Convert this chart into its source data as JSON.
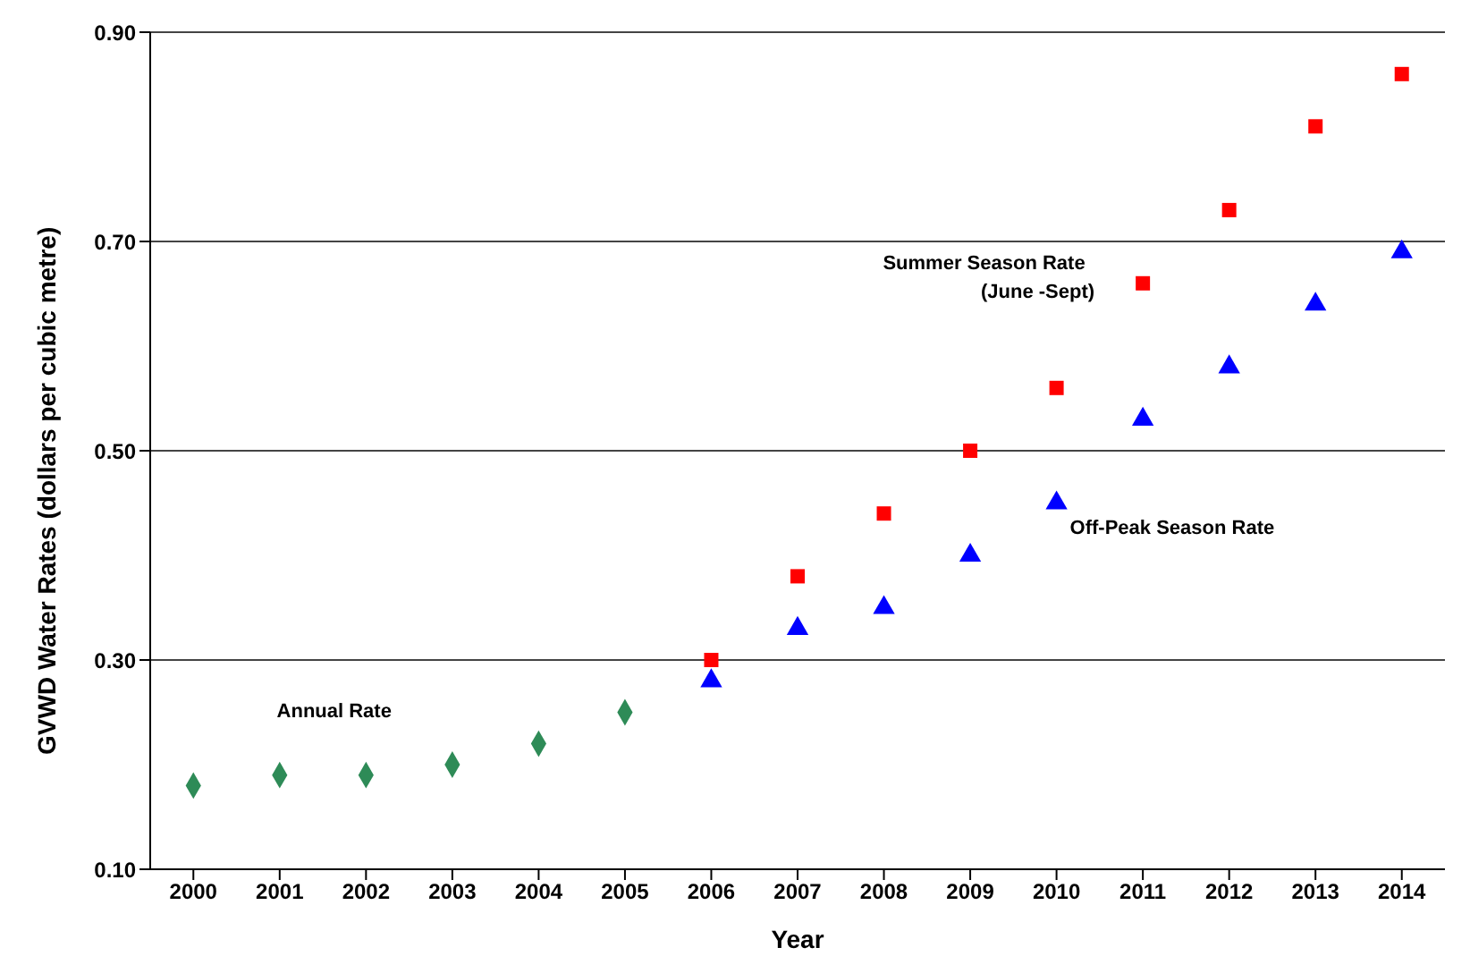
{
  "chart_data": {
    "type": "scatter",
    "xlabel": "Year",
    "ylabel": "GVWD Water Rates (dollars per cubic metre)",
    "categories": [
      "2000",
      "2001",
      "2002",
      "2003",
      "2004",
      "2005",
      "2006",
      "2007",
      "2008",
      "2009",
      "2010",
      "2011",
      "2012",
      "2013",
      "2014"
    ],
    "series": [
      {
        "name": "Annual Rate",
        "color": "#2e8b57",
        "marker": "diamond",
        "values": [
          0.18,
          0.19,
          0.19,
          0.2,
          0.22,
          0.25,
          null,
          null,
          null,
          null,
          null,
          null,
          null,
          null,
          null
        ]
      },
      {
        "name": "Summer Season Rate (June -Sept)",
        "color": "#ff0000",
        "marker": "square",
        "values": [
          null,
          null,
          null,
          null,
          null,
          null,
          0.3,
          0.38,
          0.44,
          0.5,
          0.56,
          0.66,
          0.73,
          0.81,
          0.86
        ]
      },
      {
        "name": "Off-Peak Season Rate",
        "color": "#0000ff",
        "marker": "triangle",
        "values": [
          null,
          null,
          null,
          null,
          null,
          null,
          0.28,
          0.33,
          0.35,
          0.4,
          0.45,
          0.53,
          0.58,
          0.64,
          0.69
        ]
      }
    ],
    "ylim": [
      0.1,
      0.9
    ],
    "yticks": [
      {
        "value": 0.1,
        "label": "0.10"
      },
      {
        "value": 0.3,
        "label": "0.30"
      },
      {
        "value": 0.5,
        "label": "0.50"
      },
      {
        "value": 0.7,
        "label": "0.70"
      },
      {
        "value": 0.9,
        "label": "0.90"
      }
    ],
    "grid": "y",
    "legend": false
  }
}
